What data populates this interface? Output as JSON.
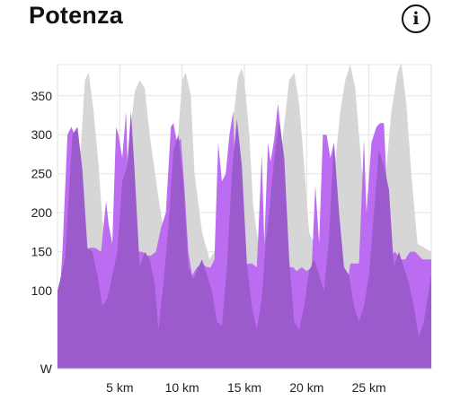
{
  "header": {
    "title": "Potenza",
    "info_icon": "info-circle-icon",
    "info_glyph": "i"
  },
  "colors": {
    "grid": "#e3e3e3",
    "gray_area": "#d6d6d6",
    "purple_light": "#bb6cf0",
    "purple_dark": "#9b5bcc"
  },
  "chart_data": {
    "type": "area",
    "title": "Potenza",
    "xlabel": "",
    "ylabel": "W",
    "unit_label": "W",
    "xlim": [
      0,
      30
    ],
    "ylim": [
      0,
      390
    ],
    "grid": true,
    "x_ticks": [
      5,
      10,
      15,
      20,
      25
    ],
    "x_tick_labels": [
      "5 km",
      "10 km",
      "15 km",
      "20 km",
      "25 km"
    ],
    "y_ticks": [
      100,
      150,
      200,
      250,
      300,
      350
    ],
    "y_tick_labels": [
      "100",
      "150",
      "200",
      "250",
      "300",
      "350"
    ],
    "series": [
      {
        "role": "gray",
        "x": [
          0,
          0.7,
          1.4,
          1.9,
          2.2,
          2.5,
          2.9,
          3.3,
          3.6,
          4.2,
          4.8,
          5.2,
          5.8,
          6.2,
          6.6,
          7.0,
          7.4,
          8.1,
          8.8,
          9.3,
          9.6,
          10.0,
          10.3,
          10.7,
          11.0,
          11.6,
          12.2,
          13.0,
          13.6,
          14.1,
          14.5,
          14.8,
          15.0,
          15.4,
          15.7,
          16.2,
          17.0,
          17.6,
          18.1,
          18.6,
          19.0,
          19.4,
          19.8,
          20.2,
          21.0,
          21.6,
          22.2,
          22.7,
          23.1,
          23.5,
          23.9,
          24.3,
          25.0,
          25.8,
          26.3,
          26.8,
          27.3,
          27.6,
          28.0,
          28.4,
          28.9,
          30.0
        ],
        "y": [
          30,
          150,
          200,
          290,
          370,
          380,
          330,
          260,
          190,
          150,
          140,
          200,
          300,
          355,
          370,
          360,
          300,
          220,
          150,
          180,
          280,
          370,
          380,
          350,
          250,
          175,
          140,
          160,
          230,
          320,
          375,
          385,
          370,
          300,
          210,
          150,
          145,
          200,
          300,
          370,
          380,
          340,
          260,
          175,
          145,
          170,
          250,
          330,
          370,
          390,
          360,
          280,
          150,
          170,
          240,
          330,
          380,
          392,
          340,
          250,
          160,
          150
        ]
      },
      {
        "role": "purple",
        "x": [
          0,
          0.4,
          0.8,
          1.1,
          1.4,
          1.7,
          2.0,
          2.3,
          2.6,
          3.0,
          3.5,
          3.9,
          4.1,
          4.4,
          4.7,
          4.9,
          5.2,
          5.5,
          5.8,
          6.0,
          6.4,
          6.8,
          7.2,
          7.5,
          7.9,
          8.3,
          8.7,
          9.1,
          9.3,
          9.6,
          9.9,
          10.2,
          10.5,
          10.8,
          11.2,
          11.6,
          12.0,
          12.3,
          12.6,
          12.9,
          13.2,
          13.5,
          13.8,
          14.1,
          14.4,
          14.7,
          15.0,
          15.3,
          15.6,
          16.0,
          16.4,
          16.6,
          16.9,
          17.1,
          17.4,
          17.7,
          18.0,
          18.3,
          18.6,
          18.9,
          19.2,
          19.6,
          20.0,
          20.4,
          20.7,
          21.0,
          21.3,
          21.6,
          21.9,
          22.2,
          22.5,
          22.8,
          23.1,
          23.5,
          23.8,
          24.2,
          24.6,
          24.8,
          25.2,
          25.6,
          25.9,
          26.2,
          26.5,
          26.8,
          27.1,
          27.5,
          27.9,
          28.3,
          28.7,
          29.0,
          29.3,
          29.6,
          30.0
        ],
        "y": [
          50,
          150,
          300,
          310,
          300,
          240,
          160,
          150,
          155,
          155,
          150,
          215,
          185,
          160,
          310,
          300,
          270,
          330,
          170,
          130,
          150,
          150,
          145,
          145,
          150,
          180,
          200,
          310,
          315,
          290,
          295,
          230,
          150,
          120,
          130,
          135,
          130,
          130,
          140,
          290,
          240,
          250,
          300,
          330,
          175,
          135,
          130,
          135,
          135,
          130,
          275,
          160,
          290,
          265,
          295,
          340,
          290,
          135,
          130,
          130,
          125,
          130,
          125,
          130,
          235,
          160,
          300,
          300,
          270,
          290,
          150,
          130,
          90,
          135,
          135,
          135,
          295,
          200,
          290,
          310,
          315,
          315,
          210,
          145,
          150,
          140,
          140,
          150,
          150,
          145,
          140,
          140,
          140
        ]
      },
      {
        "role": "purple_dark",
        "x": [
          0,
          0.6,
          1.2,
          1.6,
          2.0,
          2.4,
          2.8,
          3.2,
          3.6,
          4.0,
          4.4,
          4.8,
          5.2,
          5.6,
          5.9,
          6.2,
          6.6,
          7.0,
          7.4,
          7.8,
          8.1,
          8.5,
          8.9,
          9.3,
          9.7,
          10.1,
          10.5,
          10.9,
          11.3,
          11.6,
          12.0,
          12.4,
          12.8,
          13.2,
          13.6,
          14.0,
          14.4,
          14.8,
          15.2,
          15.6,
          16.0,
          16.4,
          16.7,
          17.0,
          17.4,
          17.8,
          18.2,
          18.6,
          19.0,
          19.4,
          19.8,
          20.2,
          20.6,
          21.0,
          21.4,
          21.8,
          22.2,
          22.6,
          23.0,
          23.4,
          23.8,
          24.2,
          24.6,
          25.0,
          25.4,
          25.8,
          26.2,
          26.6,
          27.0,
          27.4,
          27.8,
          28.2,
          28.6,
          29.0,
          29.4,
          30.0
        ],
        "y": [
          100,
          140,
          300,
          310,
          255,
          155,
          150,
          120,
          80,
          90,
          120,
          150,
          240,
          260,
          330,
          250,
          130,
          150,
          140,
          110,
          50,
          110,
          180,
          280,
          300,
          240,
          130,
          115,
          130,
          140,
          120,
          100,
          60,
          55,
          130,
          250,
          320,
          260,
          135,
          80,
          50,
          90,
          160,
          200,
          270,
          320,
          270,
          140,
          60,
          50,
          80,
          125,
          140,
          120,
          100,
          170,
          290,
          200,
          130,
          120,
          80,
          60,
          80,
          120,
          200,
          280,
          260,
          230,
          130,
          150,
          130,
          110,
          80,
          40,
          60,
          120
        ]
      }
    ]
  }
}
